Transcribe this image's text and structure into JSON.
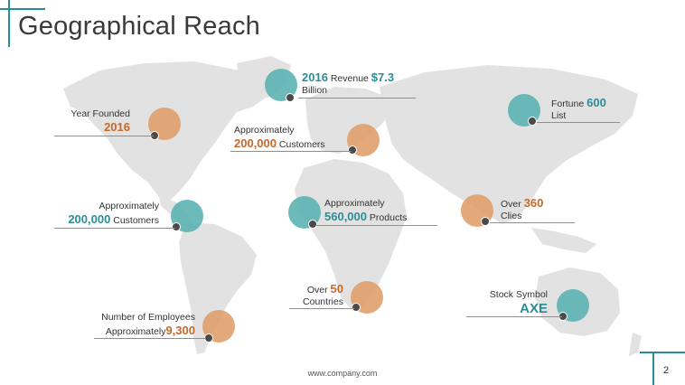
{
  "slide": {
    "title": "Geographical Reach",
    "footer_url": "www.company.com",
    "page_number": "2"
  },
  "colors": {
    "teal": "#2a8e97",
    "orange": "#c8672a",
    "map": "#e2e2e2"
  },
  "callouts": {
    "revenue": {
      "year": "2016",
      "label": "Revenue",
      "value": "$7.3",
      "unit": "Billion"
    },
    "fortune": {
      "label": "Fortune",
      "value": "600",
      "unit": "List"
    },
    "founded": {
      "label": "Year Founded",
      "value": "2016"
    },
    "eu_customers": {
      "label": "Approximately",
      "value": "200,000",
      "unit": "Customers"
    },
    "am_customers": {
      "label": "Approximately",
      "value": "200,000",
      "unit": "Customers"
    },
    "products": {
      "label": "Approximately",
      "value": "560,000",
      "unit": "Products"
    },
    "cities": {
      "label": "Over",
      "value": "360",
      "unit": "Clies"
    },
    "countries": {
      "label": "Over",
      "value": "50",
      "unit": "Countries"
    },
    "employees": {
      "label": "Number of Employees",
      "prefix": "Approximately",
      "value": "9,300"
    },
    "stock": {
      "label": "Stock Symbol",
      "value": "AXE"
    }
  }
}
